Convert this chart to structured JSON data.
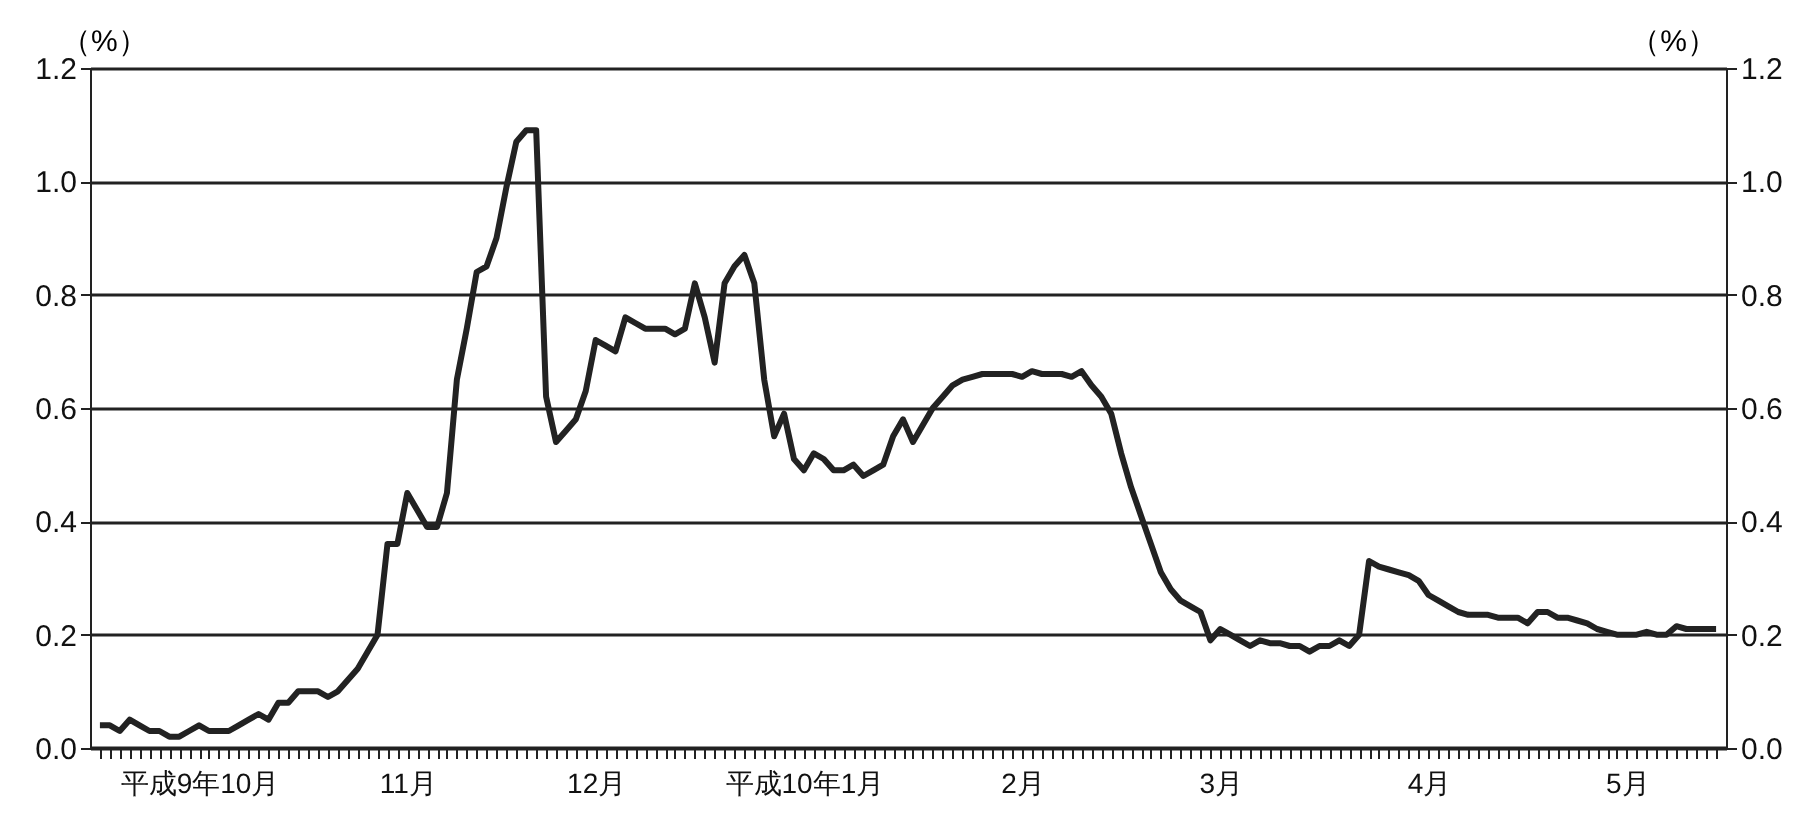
{
  "chart_data": {
    "type": "line",
    "categories": [
      null,
      null,
      null,
      null,
      null,
      null,
      null,
      null,
      null,
      null,
      "平成9年10月",
      null,
      null,
      null,
      null,
      null,
      null,
      null,
      null,
      null,
      null,
      null,
      null,
      null,
      null,
      null,
      null,
      null,
      null,
      null,
      null,
      "11月",
      null,
      null,
      null,
      null,
      null,
      null,
      null,
      null,
      null,
      null,
      null,
      null,
      null,
      null,
      null,
      null,
      null,
      null,
      "12月",
      null,
      null,
      null,
      null,
      null,
      null,
      null,
      null,
      null,
      null,
      null,
      null,
      null,
      null,
      null,
      null,
      null,
      null,
      null,
      null,
      "平成10年1月",
      null,
      null,
      null,
      null,
      null,
      null,
      null,
      null,
      null,
      null,
      null,
      null,
      null,
      null,
      null,
      null,
      null,
      null,
      null,
      null,
      null,
      "2月",
      null,
      null,
      null,
      null,
      null,
      null,
      null,
      null,
      null,
      null,
      null,
      null,
      null,
      null,
      null,
      null,
      null,
      null,
      null,
      "3月",
      null,
      null,
      null,
      null,
      null,
      null,
      null,
      null,
      null,
      null,
      null,
      null,
      null,
      null,
      null,
      null,
      null,
      null,
      null,
      null,
      "4月",
      null,
      null,
      null,
      null,
      null,
      null,
      null,
      null,
      null,
      null,
      null,
      null,
      null,
      null,
      null,
      null,
      null,
      null,
      null,
      "5月",
      null,
      null,
      null,
      null,
      null,
      null,
      null,
      null,
      null
    ],
    "series": [
      {
        "color": "#222222",
        "values": [
          0.04,
          0.04,
          0.03,
          0.05,
          0.04,
          0.03,
          0.03,
          0.02,
          0.02,
          0.03,
          0.04,
          0.03,
          0.03,
          0.03,
          0.04,
          0.05,
          0.06,
          0.05,
          0.08,
          0.08,
          0.1,
          0.1,
          0.1,
          0.09,
          0.1,
          0.12,
          0.14,
          0.17,
          0.2,
          0.36,
          0.36,
          0.45,
          0.42,
          0.39,
          0.39,
          0.45,
          0.65,
          0.74,
          0.84,
          0.85,
          0.9,
          0.99,
          1.07,
          1.09,
          1.09,
          0.62,
          0.54,
          0.56,
          0.58,
          0.63,
          0.72,
          0.71,
          0.7,
          0.76,
          0.75,
          0.74,
          0.74,
          0.74,
          0.73,
          0.74,
          0.82,
          0.76,
          0.68,
          0.82,
          0.85,
          0.87,
          0.82,
          0.65,
          0.55,
          0.59,
          0.51,
          0.49,
          0.52,
          0.51,
          0.49,
          0.49,
          0.5,
          0.48,
          0.49,
          0.5,
          0.55,
          0.58,
          0.54,
          0.57,
          0.6,
          0.62,
          0.64,
          0.65,
          0.655,
          0.66,
          0.66,
          0.66,
          0.66,
          0.655,
          0.665,
          0.66,
          0.66,
          0.66,
          0.655,
          0.665,
          0.64,
          0.62,
          0.59,
          0.52,
          0.46,
          0.41,
          0.36,
          0.31,
          0.28,
          0.26,
          0.25,
          0.24,
          0.19,
          0.21,
          0.2,
          0.19,
          0.18,
          0.19,
          0.185,
          0.185,
          0.18,
          0.18,
          0.17,
          0.18,
          0.18,
          0.19,
          0.18,
          0.2,
          0.33,
          0.32,
          0.315,
          0.31,
          0.305,
          0.295,
          0.27,
          0.26,
          0.25,
          0.24,
          0.235,
          0.235,
          0.235,
          0.23,
          0.23,
          0.23,
          0.22,
          0.24,
          0.24,
          0.23,
          0.23,
          0.225,
          0.22,
          0.21,
          0.205,
          0.2,
          0.2,
          0.2,
          0.205,
          0.2,
          0.2,
          0.215,
          0.21,
          0.21,
          0.21,
          0.21
        ]
      }
    ],
    "ylabel": "（%）",
    "y2label": "（%）",
    "ylim": [
      0,
      1.2
    ],
    "yticks": [
      {
        "value": 0,
        "label": "0.0"
      },
      {
        "value": 0.2,
        "label": "0.2"
      },
      {
        "value": 0.4,
        "label": "0.4"
      },
      {
        "value": 0.6,
        "label": "0.6"
      },
      {
        "value": 0.8,
        "label": "0.8"
      },
      {
        "value": 1.0,
        "label": "1.0"
      },
      {
        "value": 1.2,
        "label": "1.2"
      }
    ],
    "y2lim": [
      0,
      1.2
    ],
    "y2ticks": [
      {
        "value": 0,
        "label": "0.0"
      },
      {
        "value": 0.2,
        "label": "0.2"
      },
      {
        "value": 0.4,
        "label": "0.4"
      },
      {
        "value": 0.6,
        "label": "0.6"
      },
      {
        "value": 0.8,
        "label": "0.8"
      },
      {
        "value": 1.0,
        "label": "1.0"
      },
      {
        "value": 1.2,
        "label": "1.2"
      }
    ],
    "grid": "y"
  }
}
